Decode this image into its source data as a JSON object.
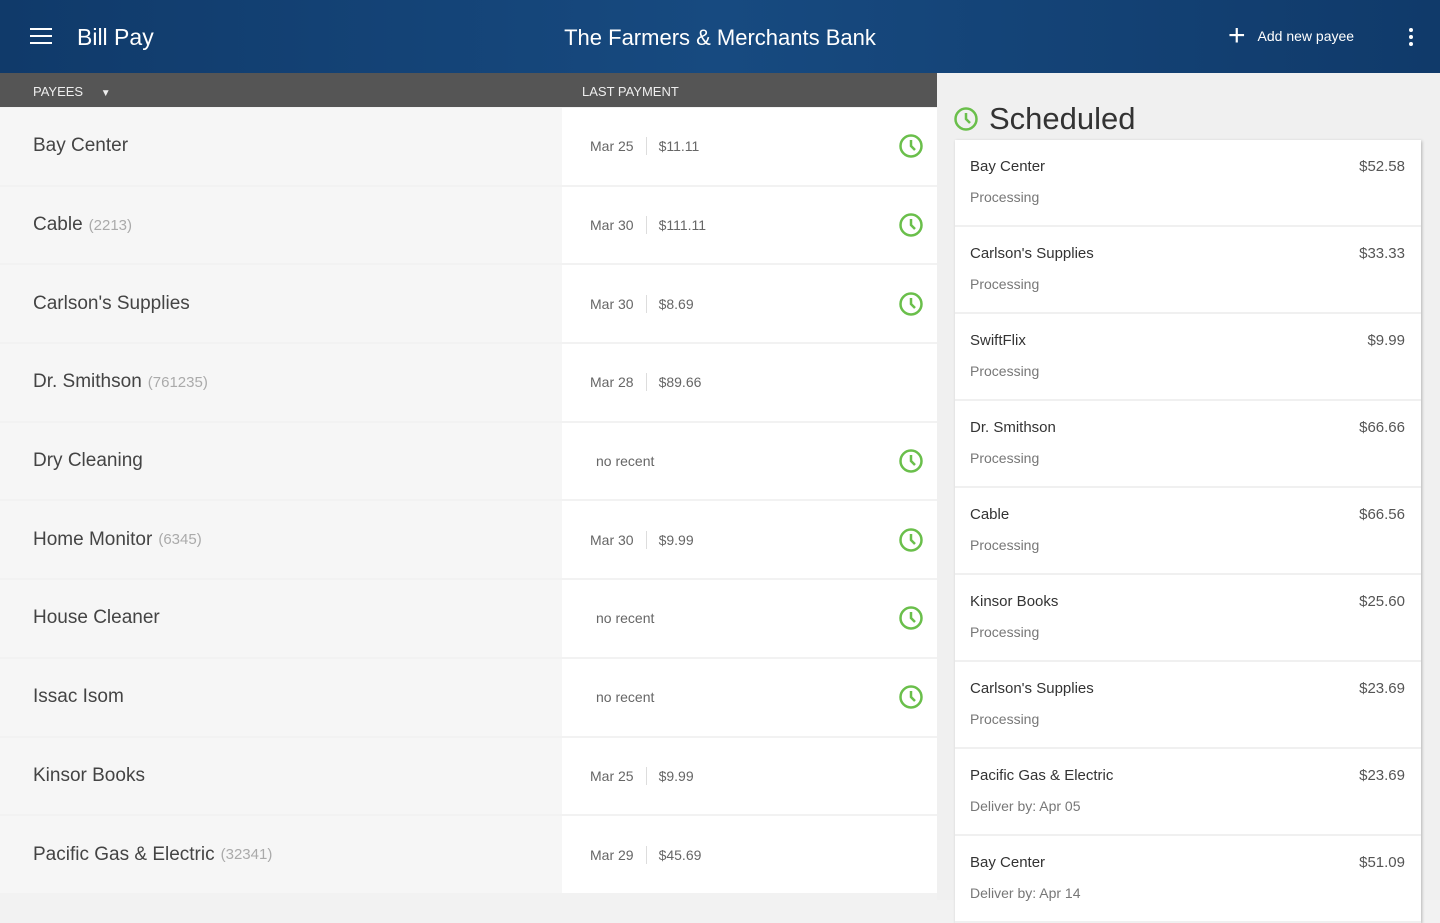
{
  "header": {
    "app_title": "Bill Pay",
    "bank_name": "The Farmers & Merchants Bank",
    "add_payee_label": "Add new payee"
  },
  "columns": {
    "payees": "PAYEES",
    "last_payment": "LAST PAYMENT"
  },
  "colors": {
    "header_bg": "#103a6a",
    "accent_green": "#6abf4b"
  },
  "payees": [
    {
      "name": "Bay Center",
      "account": "",
      "date": "Mar 25",
      "amount": "$11.11",
      "scheduled": true
    },
    {
      "name": "Cable",
      "account": "(2213)",
      "date": "Mar 30",
      "amount": "$111.11",
      "scheduled": true
    },
    {
      "name": "Carlson's Supplies",
      "account": "",
      "date": "Mar 30",
      "amount": "$8.69",
      "scheduled": true
    },
    {
      "name": "Dr. Smithson",
      "account": "(761235)",
      "date": "Mar 28",
      "amount": "$89.66",
      "scheduled": false
    },
    {
      "name": "Dry Cleaning",
      "account": "",
      "no_recent": "no recent",
      "scheduled": true
    },
    {
      "name": "Home Monitor",
      "account": "(6345)",
      "date": "Mar 30",
      "amount": "$9.99",
      "scheduled": true
    },
    {
      "name": "House Cleaner",
      "account": "",
      "no_recent": "no recent",
      "scheduled": true
    },
    {
      "name": "Issac Isom",
      "account": "",
      "no_recent": "no recent",
      "scheduled": true
    },
    {
      "name": "Kinsor Books",
      "account": "",
      "date": "Mar 25",
      "amount": "$9.99",
      "scheduled": false
    },
    {
      "name": "Pacific Gas & Electric",
      "account": "(32341)",
      "date": "Mar 29",
      "amount": "$45.69",
      "scheduled": false
    }
  ],
  "scheduled": {
    "title": "Scheduled",
    "items": [
      {
        "name": "Bay Center",
        "amount": "$52.58",
        "status": "Processing"
      },
      {
        "name": "Carlson's Supplies",
        "amount": "$33.33",
        "status": "Processing"
      },
      {
        "name": "SwiftFlix",
        "amount": "$9.99",
        "status": "Processing"
      },
      {
        "name": "Dr. Smithson",
        "amount": "$66.66",
        "status": "Processing"
      },
      {
        "name": "Cable",
        "amount": "$66.56",
        "status": "Processing"
      },
      {
        "name": "Kinsor Books",
        "amount": "$25.60",
        "status": "Processing"
      },
      {
        "name": "Carlson's Supplies",
        "amount": "$23.69",
        "status": "Processing"
      },
      {
        "name": "Pacific Gas & Electric",
        "amount": "$23.69",
        "status": "Deliver by: Apr 05"
      },
      {
        "name": "Bay Center",
        "amount": "$51.09",
        "status": "Deliver by: Apr 14"
      }
    ]
  }
}
